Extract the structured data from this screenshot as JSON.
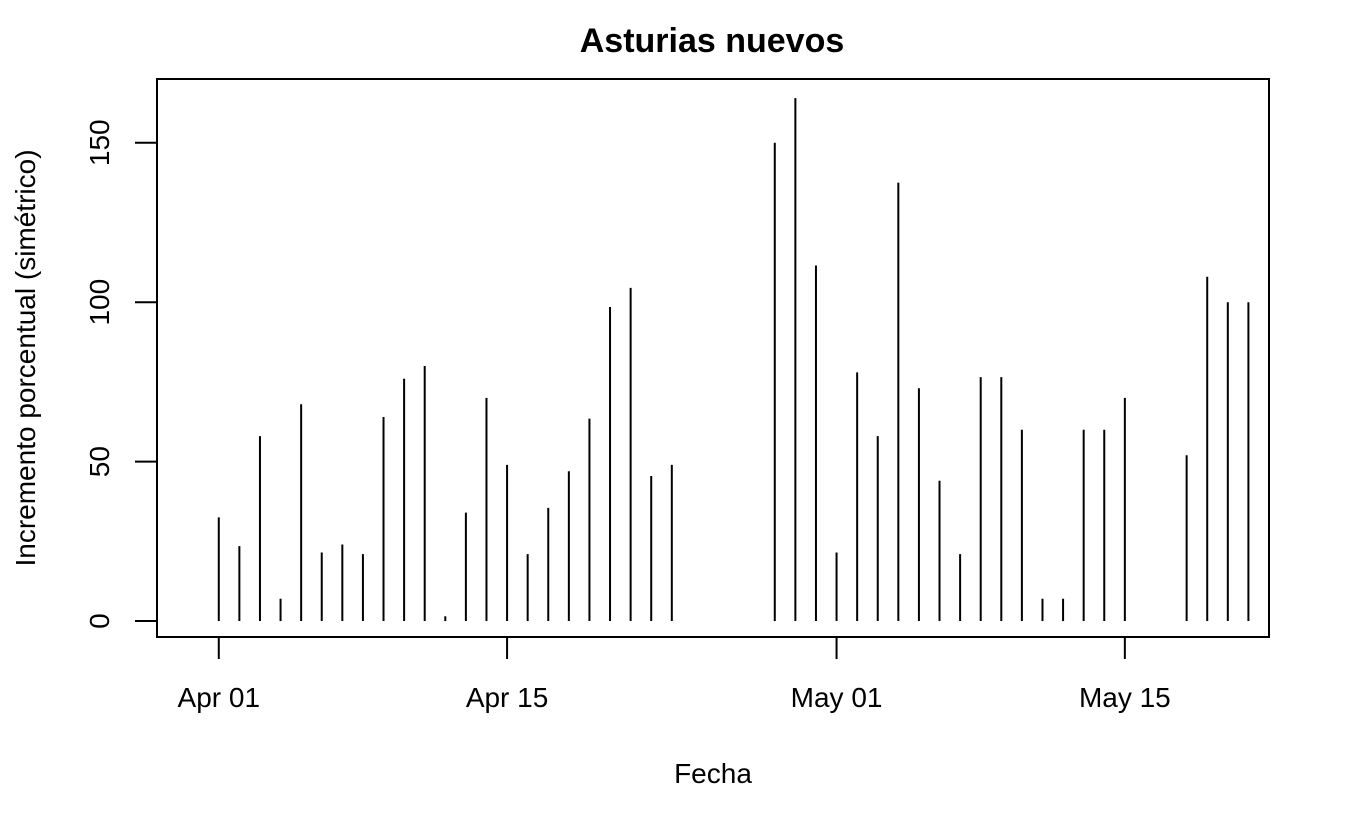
{
  "chart_data": {
    "type": "bar",
    "title": "Asturias nuevos",
    "xlabel": "Fecha",
    "ylabel": "Incremento porcentual (simétrico)",
    "x_tick_labels": [
      "Apr 01",
      "Apr 15",
      "May 01",
      "May 15"
    ],
    "y_tick_labels": [
      "0",
      "50",
      "100",
      "150"
    ],
    "y_ticks": [
      0,
      50,
      100,
      150
    ],
    "ylim": [
      -5,
      170
    ],
    "xlim": [
      "2020-03-29",
      "2020-05-22"
    ],
    "grid": false,
    "x": [
      "2020-04-01",
      "2020-04-02",
      "2020-04-03",
      "2020-04-04",
      "2020-04-05",
      "2020-04-06",
      "2020-04-07",
      "2020-04-08",
      "2020-04-09",
      "2020-04-10",
      "2020-04-11",
      "2020-04-12",
      "2020-04-13",
      "2020-04-14",
      "2020-04-15",
      "2020-04-16",
      "2020-04-17",
      "2020-04-18",
      "2020-04-19",
      "2020-04-20",
      "2020-04-21",
      "2020-04-22",
      "2020-04-23",
      "2020-04-24",
      "2020-04-25",
      "2020-04-26",
      "2020-04-27",
      "2020-04-28",
      "2020-04-29",
      "2020-04-30",
      "2020-05-01",
      "2020-05-02",
      "2020-05-03",
      "2020-05-04",
      "2020-05-05",
      "2020-05-06",
      "2020-05-07",
      "2020-05-08",
      "2020-05-09",
      "2020-05-10",
      "2020-05-11",
      "2020-05-12",
      "2020-05-13",
      "2020-05-14",
      "2020-05-15",
      "2020-05-16",
      "2020-05-17",
      "2020-05-18",
      "2020-05-19",
      "2020-05-20"
    ],
    "values": [
      32.5,
      23.5,
      58,
      7,
      68,
      21.5,
      24,
      21,
      64,
      76,
      80,
      1.5,
      34,
      70,
      49,
      21,
      35.5,
      47,
      63.5,
      98.5,
      104.5,
      45.5,
      49,
      0,
      0,
      0,
      0,
      150,
      164,
      111.5,
      21.5,
      78,
      58,
      137.5,
      73,
      44,
      21,
      76.5,
      76.5,
      60,
      7,
      7,
      60,
      60,
      70,
      0,
      0,
      52,
      108,
      100
    ],
    "extra_value_2020-05-21": 100
  }
}
